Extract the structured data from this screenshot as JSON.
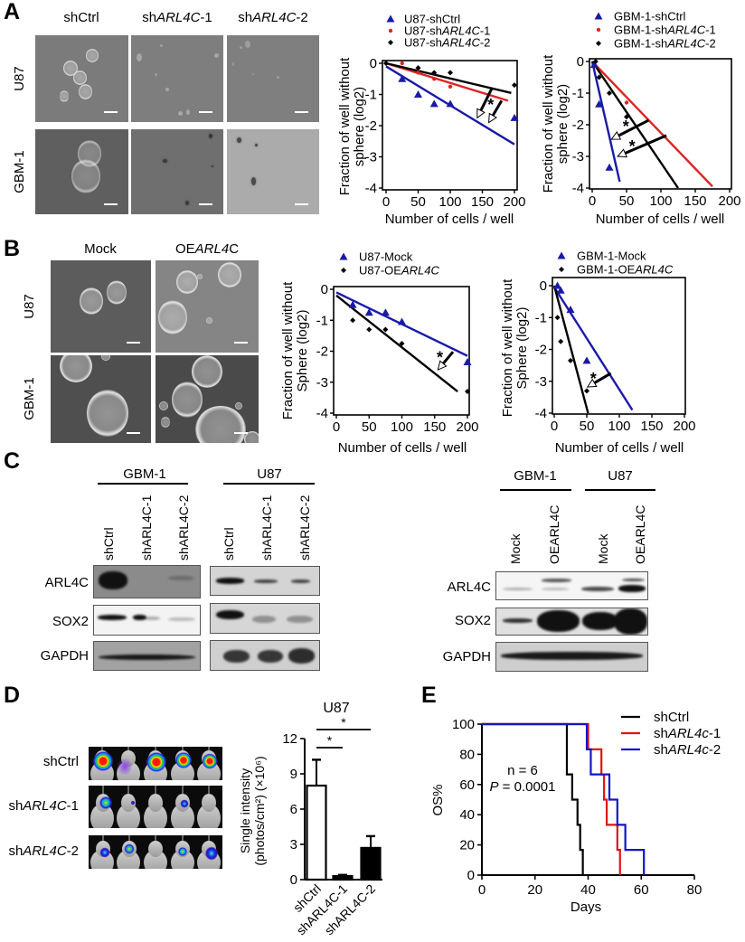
{
  "panel_labels": {
    "a": "A",
    "b": "B",
    "c": "C",
    "d": "D",
    "e": "E"
  },
  "panel_a": {
    "col_headers": [
      "shCtrl",
      "shARL4C-1",
      "shARL4C-2"
    ],
    "row_labels": [
      "U87",
      "GBM-1"
    ]
  },
  "panel_b": {
    "col_headers": [
      "Mock",
      "OEARL4C"
    ],
    "row_labels": [
      "U87",
      "GBM-1"
    ]
  },
  "panel_c": {
    "left": {
      "groups": [
        "GBM-1",
        "U87"
      ],
      "lanes": [
        "shCtrl",
        "shARL4C-1",
        "shARL4C-2",
        "shCtrl",
        "shARL4C-1",
        "shARL4C-2"
      ],
      "rows": [
        "ARL4C",
        "SOX2",
        "GAPDH"
      ]
    },
    "right": {
      "groups": [
        "GBM-1",
        "U87"
      ],
      "lanes": [
        "Mock",
        "OEARL4C",
        "Mock",
        "OEARL4C"
      ],
      "rows": [
        "ARL4C",
        "SOX2",
        "GAPDH"
      ]
    }
  },
  "panel_d": {
    "imaging_rows": [
      "shCtrl",
      "shARL4C-1",
      "shARL4C-2"
    ]
  },
  "colors": {
    "blue": "#1a1aa8",
    "red": "#e02424",
    "black": "#000000",
    "km_blue": "#1414c8",
    "km_red": "#e01414"
  },
  "chart_data": [
    {
      "id": "A-U87-limiting-dilution",
      "type": "scatter",
      "title": "",
      "xlabel": "Number of cells / well",
      "ylabel": [
        "Fraction of well without",
        "sphere (log2)"
      ],
      "xlim": [
        0,
        200
      ],
      "ylim": [
        -4,
        0
      ],
      "xticks": [
        0,
        50,
        100,
        150,
        200
      ],
      "yticks": [
        0,
        -1,
        -2,
        -3,
        -4
      ],
      "legend_position": "top",
      "series": [
        {
          "name": "U87-shCtrl",
          "italic": "",
          "marker": "triangle",
          "color": "#1a1aa8",
          "points": [
            [
              25,
              -0.5
            ],
            [
              50,
              -1.0
            ],
            [
              75,
              -1.3
            ],
            [
              100,
              -1.3
            ],
            [
              200,
              -1.75
            ]
          ],
          "fit": [
            [
              0,
              -0.1
            ],
            [
              200,
              -2.6
            ]
          ]
        },
        {
          "name": "U87-shARL4C-1",
          "italic": "ARL4C",
          "marker": "dot",
          "color": "#e02424",
          "points": [
            [
              0,
              0
            ],
            [
              25,
              0
            ],
            [
              50,
              -0.3
            ],
            [
              75,
              -0.5
            ],
            [
              100,
              -0.75
            ]
          ],
          "fit": [
            [
              0,
              0
            ],
            [
              190,
              -1.2
            ]
          ]
        },
        {
          "name": "U87-shARL4C-2",
          "italic": "ARL4C",
          "marker": "diamond",
          "color": "#000000",
          "points": [
            [
              0,
              0
            ],
            [
              50,
              -0.15
            ],
            [
              75,
              -0.3
            ],
            [
              100,
              -0.3
            ],
            [
              200,
              -0.7
            ]
          ],
          "fit": [
            [
              0,
              0
            ],
            [
              195,
              -0.95
            ]
          ]
        }
      ],
      "arrows": [
        [
          [
            165,
            -0.8
          ],
          [
            142,
            -1.75
          ]
        ],
        [
          [
            180,
            -1.2
          ],
          [
            160,
            -1.9
          ]
        ]
      ],
      "annotations": [
        {
          "text": "*",
          "x": 163,
          "y": -1.27
        }
      ]
    },
    {
      "id": "A-GBM1-limiting-dilution",
      "type": "scatter",
      "title": "",
      "xlabel": "Number of cells / well",
      "ylabel": [
        "Fraction of well without",
        "sphere (log2)"
      ],
      "xlim": [
        0,
        200
      ],
      "ylim": [
        -4,
        0
      ],
      "xticks": [
        0,
        50,
        100,
        150,
        200
      ],
      "yticks": [
        0,
        -1,
        -2,
        -3,
        -4
      ],
      "legend_position": "top",
      "series": [
        {
          "name": "GBM-1-shCtrl",
          "italic": "",
          "marker": "triangle",
          "color": "#1a1aa8",
          "points": [
            [
              3,
              -0.1
            ],
            [
              10,
              -1.35
            ],
            [
              25,
              -3.35
            ]
          ],
          "fit": [
            [
              0,
              0
            ],
            [
              40,
              -3.8
            ]
          ]
        },
        {
          "name": "GBM-1-shARL4C-1",
          "italic": "ARL4C",
          "marker": "dot",
          "color": "#e02424",
          "points": [
            [
              50,
              -1.3
            ]
          ],
          "fit": [
            [
              0,
              0
            ],
            [
              175,
              -3.95
            ]
          ]
        },
        {
          "name": "GBM-1-shARL4C-2",
          "italic": "ARL4C",
          "marker": "diamond",
          "color": "#000000",
          "points": [
            [
              5,
              0
            ],
            [
              10,
              -0.5
            ],
            [
              25,
              -1.0
            ],
            [
              50,
              -1.75
            ]
          ],
          "fit": [
            [
              0,
              0
            ],
            [
              125,
              -4.0
            ]
          ]
        }
      ],
      "arrows": [
        [
          [
            82,
            -1.86
          ],
          [
            28,
            -2.46
          ]
        ],
        [
          [
            108,
            -2.34
          ],
          [
            37,
            -3.0
          ]
        ]
      ],
      "annotations": [
        {
          "text": "*",
          "x": 49,
          "y": -2.0
        },
        {
          "text": "*",
          "x": 58,
          "y": -2.63
        }
      ]
    },
    {
      "id": "B-U87-limiting-dilution",
      "type": "scatter",
      "title": "",
      "xlabel": "Number of cells / well",
      "ylabel": [
        "Fraction of well without",
        "Sphere (log2)"
      ],
      "xlim": [
        0,
        200
      ],
      "ylim": [
        -4,
        0
      ],
      "xticks": [
        0,
        50,
        100,
        150,
        200
      ],
      "yticks": [
        0,
        -1,
        -2,
        -3,
        -4
      ],
      "legend_position": "top",
      "series": [
        {
          "name": "U87-Mock",
          "italic": "",
          "marker": "triangle",
          "color": "#1a1aa8",
          "points": [
            [
              25,
              -0.5
            ],
            [
              50,
              -0.75
            ],
            [
              75,
              -0.75
            ],
            [
              100,
              -1.05
            ],
            [
              200,
              -2.35
            ]
          ],
          "fit": [
            [
              0,
              -0.1
            ],
            [
              200,
              -2.15
            ]
          ]
        },
        {
          "name": "U87-OEARL4C",
          "italic": "ARL4C",
          "marker": "diamond",
          "color": "#000000",
          "points": [
            [
              25,
              -1.0
            ],
            [
              50,
              -1.3
            ],
            [
              75,
              -1.3
            ],
            [
              100,
              -1.75
            ],
            [
              200,
              -3.3
            ]
          ],
          "fit": [
            [
              0,
              -0.2
            ],
            [
              185,
              -3.3
            ]
          ]
        }
      ],
      "arrows": [
        [
          [
            178,
            -2.02
          ],
          [
            155,
            -2.6
          ]
        ]
      ],
      "annotations": [
        {
          "text": "*",
          "x": 158,
          "y": -2.14
        }
      ]
    },
    {
      "id": "B-GBM1-limiting-dilution",
      "type": "scatter",
      "title": "",
      "xlabel": "Number of cells / well",
      "ylabel": [
        "Fraction of well without",
        "Sphere (log2)"
      ],
      "xlim": [
        0,
        200
      ],
      "ylim": [
        -4,
        0
      ],
      "xticks": [
        0,
        50,
        100,
        150,
        200
      ],
      "yticks": [
        0,
        -1,
        -2,
        -3,
        -4
      ],
      "legend_position": "top",
      "series": [
        {
          "name": "GBM-1-Mock",
          "italic": "",
          "marker": "triangle",
          "color": "#1a1aa8",
          "points": [
            [
              5,
              0
            ],
            [
              10,
              -0.15
            ],
            [
              25,
              -0.75
            ],
            [
              50,
              -2.35
            ]
          ],
          "fit": [
            [
              0,
              -0.05
            ],
            [
              120,
              -3.9
            ]
          ]
        },
        {
          "name": "GBM-1-OEARL4C",
          "italic": "ARL4C",
          "marker": "diamond",
          "color": "#000000",
          "points": [
            [
              5,
              -1.0
            ],
            [
              10,
              -1.75
            ],
            [
              25,
              -2.35
            ],
            [
              50,
              -3.3
            ]
          ],
          "fit": [
            [
              0,
              0
            ],
            [
              52,
              -4.0
            ]
          ]
        }
      ],
      "arrows": [
        [
          [
            87,
            -2.75
          ],
          [
            51,
            -3.18
          ]
        ]
      ],
      "annotations": [
        {
          "text": "*",
          "x": 60,
          "y": -2.87
        }
      ]
    },
    {
      "id": "D-U87-bioluminescence",
      "type": "bar",
      "title": "U87",
      "xlabel": "",
      "ylabel": [
        "Single intensity",
        "(photos/cm²) (×10⁶)"
      ],
      "categories": [
        "shCtrl",
        "shARL4C-1",
        "shARL4C-2"
      ],
      "values": [
        8.0,
        0.3,
        2.7
      ],
      "errors": [
        2.2,
        0.1,
        1.0
      ],
      "fills": [
        "#ffffff",
        "#000000",
        "#000000"
      ],
      "ylim": [
        0,
        12
      ],
      "yticks": [
        0,
        3,
        6,
        9,
        12
      ],
      "significance": [
        {
          "from": 0,
          "to": 1,
          "label": "*"
        },
        {
          "from": 0,
          "to": 2,
          "label": "*"
        }
      ]
    },
    {
      "id": "E-survival",
      "type": "line",
      "subtype": "kaplan-meier",
      "title": "",
      "xlabel": "Days",
      "ylabel": "OS%",
      "xlim": [
        0,
        80
      ],
      "ylim": [
        0,
        100
      ],
      "xticks": [
        0,
        20,
        40,
        60,
        80
      ],
      "yticks": [
        0,
        20,
        40,
        60,
        80,
        100
      ],
      "legend_position": "top-right",
      "series": [
        {
          "name": "shCtrl",
          "italic": "",
          "color": "#000000",
          "steps": [
            [
              0,
              100
            ],
            [
              32,
              66.7
            ],
            [
              34,
              50
            ],
            [
              36,
              33.3
            ],
            [
              37,
              16.7
            ],
            [
              38,
              0
            ]
          ]
        },
        {
          "name": "shARL4c-1",
          "italic": "ARL4c",
          "color": "#e01414",
          "steps": [
            [
              0,
              100
            ],
            [
              40,
              83.3
            ],
            [
              45,
              66.7
            ],
            [
              46,
              50
            ],
            [
              47,
              33.3
            ],
            [
              51,
              16.7
            ],
            [
              52,
              0
            ]
          ]
        },
        {
          "name": "shARL4c-2",
          "italic": "ARL4c",
          "color": "#1414c8",
          "steps": [
            [
              0,
              100
            ],
            [
              39.5,
              83.3
            ],
            [
              41,
              66.7
            ],
            [
              48,
              50
            ],
            [
              51,
              33.3
            ],
            [
              54,
              16.7
            ],
            [
              61,
              0
            ]
          ]
        }
      ],
      "annotations": [
        {
          "text": "n = 6",
          "italic": ""
        },
        {
          "text": "P = 0.0001",
          "italic": "P"
        }
      ]
    }
  ]
}
